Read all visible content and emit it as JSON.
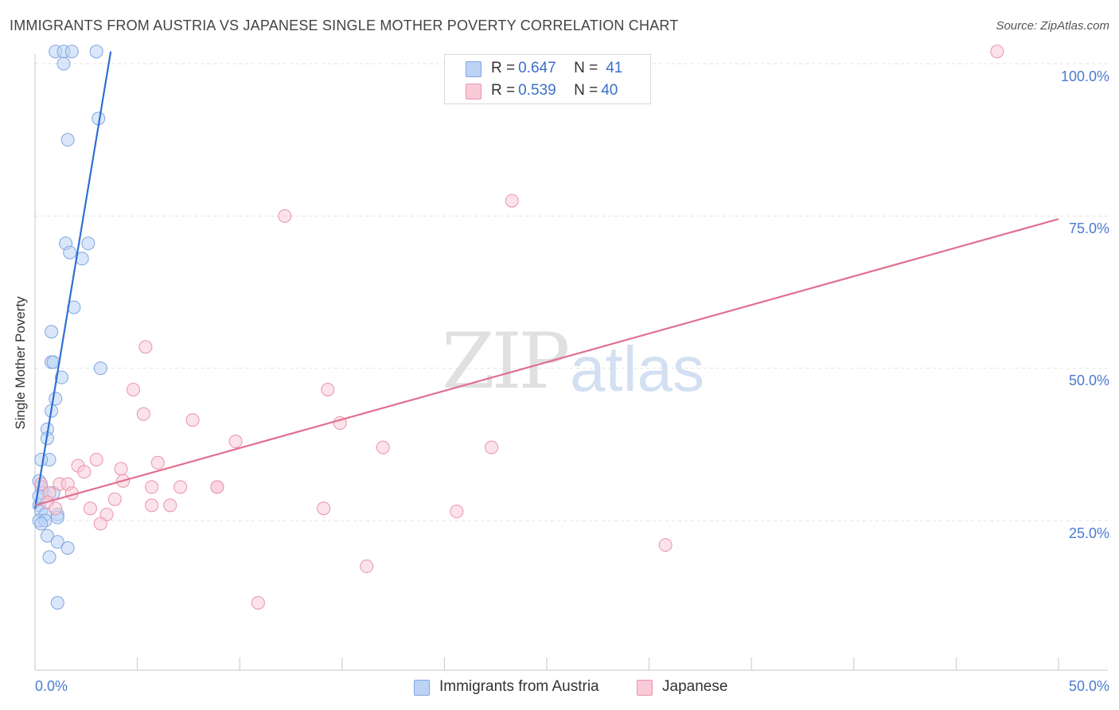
{
  "title": "IMMIGRANTS FROM AUSTRIA VS JAPANESE SINGLE MOTHER POVERTY CORRELATION CHART",
  "source": "Source: ZipAtlas.com",
  "watermark": {
    "zip": "ZIP",
    "atlas": "atlas"
  },
  "legend_top": {
    "rows": [
      {
        "r_label": "R = ",
        "r_value": "0.647",
        "n_label": "N = ",
        "n_value": "41"
      },
      {
        "r_label": "R = ",
        "r_value": "0.539",
        "n_label": "N = ",
        "n_value": "40"
      }
    ]
  },
  "bottom_legend": [
    "Immigrants from Austria",
    "Japanese"
  ],
  "colors": {
    "blue": "#2e6fd4",
    "blue_fill": "#bcd3f5",
    "pink": "#e0708f",
    "pink_fill": "#f9cad8"
  },
  "chart_data": {
    "type": "scatter",
    "title": "IMMIGRANTS FROM AUSTRIA VS JAPANESE SINGLE MOTHER POVERTY CORRELATION CHART",
    "xlabel": "",
    "ylabel": "Single Mother Poverty",
    "xlim": [
      0,
      50
    ],
    "ylim": [
      0,
      105
    ],
    "x_tick_labels": [
      "0.0%",
      "50.0%"
    ],
    "y_tick_labels": [
      "25.0%",
      "50.0%",
      "75.0%",
      "100.0%"
    ],
    "y_ticks": [
      25,
      50,
      75,
      100
    ],
    "grid": true,
    "legend_position": "top-center",
    "series": [
      {
        "name": "Immigrants from Austria",
        "color": "#2e6fd4",
        "trend": {
          "x": [
            0.0,
            3.7
          ],
          "y": [
            27.0,
            102.0
          ]
        },
        "points": [
          {
            "x": 1.0,
            "y": 102.0
          },
          {
            "x": 1.4,
            "y": 102.0
          },
          {
            "x": 1.8,
            "y": 102.0
          },
          {
            "x": 3.0,
            "y": 102.0
          },
          {
            "x": 1.4,
            "y": 100.0
          },
          {
            "x": 3.1,
            "y": 91.0
          },
          {
            "x": 1.6,
            "y": 87.5
          },
          {
            "x": 1.5,
            "y": 70.5
          },
          {
            "x": 1.7,
            "y": 69.0
          },
          {
            "x": 2.6,
            "y": 70.5
          },
          {
            "x": 2.3,
            "y": 68.0
          },
          {
            "x": 1.9,
            "y": 60.0
          },
          {
            "x": 0.8,
            "y": 56.0
          },
          {
            "x": 0.8,
            "y": 51.0
          },
          {
            "x": 0.9,
            "y": 51.0
          },
          {
            "x": 3.2,
            "y": 50.0
          },
          {
            "x": 1.3,
            "y": 48.5
          },
          {
            "x": 1.0,
            "y": 45.0
          },
          {
            "x": 0.8,
            "y": 43.0
          },
          {
            "x": 0.6,
            "y": 40.0
          },
          {
            "x": 0.6,
            "y": 38.5
          },
          {
            "x": 0.7,
            "y": 35.0
          },
          {
            "x": 0.3,
            "y": 35.0
          },
          {
            "x": 0.2,
            "y": 31.5
          },
          {
            "x": 0.3,
            "y": 30.5
          },
          {
            "x": 0.4,
            "y": 29.5
          },
          {
            "x": 0.9,
            "y": 29.5
          },
          {
            "x": 0.2,
            "y": 27.5
          },
          {
            "x": 0.3,
            "y": 26.5
          },
          {
            "x": 0.5,
            "y": 26.0
          },
          {
            "x": 1.1,
            "y": 26.0
          },
          {
            "x": 1.1,
            "y": 25.5
          },
          {
            "x": 0.2,
            "y": 25.0
          },
          {
            "x": 0.5,
            "y": 25.0
          },
          {
            "x": 0.3,
            "y": 24.5
          },
          {
            "x": 0.6,
            "y": 22.5
          },
          {
            "x": 1.1,
            "y": 21.5
          },
          {
            "x": 1.6,
            "y": 20.5
          },
          {
            "x": 0.7,
            "y": 19.0
          },
          {
            "x": 1.1,
            "y": 11.5
          },
          {
            "x": 0.2,
            "y": 29.0
          }
        ]
      },
      {
        "name": "Japanese",
        "color": "#e0708f",
        "trend": {
          "x": [
            0.0,
            50.0
          ],
          "y": [
            27.5,
            74.5
          ]
        },
        "points": [
          {
            "x": 47.0,
            "y": 102.0
          },
          {
            "x": 23.3,
            "y": 77.5
          },
          {
            "x": 12.2,
            "y": 75.0
          },
          {
            "x": 5.4,
            "y": 53.5
          },
          {
            "x": 14.3,
            "y": 46.5
          },
          {
            "x": 4.8,
            "y": 46.5
          },
          {
            "x": 5.3,
            "y": 42.5
          },
          {
            "x": 7.7,
            "y": 41.5
          },
          {
            "x": 14.9,
            "y": 41.0
          },
          {
            "x": 9.8,
            "y": 38.0
          },
          {
            "x": 17.0,
            "y": 37.0
          },
          {
            "x": 22.3,
            "y": 37.0
          },
          {
            "x": 3.0,
            "y": 35.0
          },
          {
            "x": 6.0,
            "y": 34.5
          },
          {
            "x": 2.1,
            "y": 34.0
          },
          {
            "x": 4.2,
            "y": 33.5
          },
          {
            "x": 2.4,
            "y": 33.0
          },
          {
            "x": 4.3,
            "y": 31.5
          },
          {
            "x": 1.2,
            "y": 31.0
          },
          {
            "x": 1.6,
            "y": 31.0
          },
          {
            "x": 0.3,
            "y": 31.0
          },
          {
            "x": 5.7,
            "y": 30.5
          },
          {
            "x": 7.1,
            "y": 30.5
          },
          {
            "x": 8.9,
            "y": 30.5
          },
          {
            "x": 8.9,
            "y": 30.5
          },
          {
            "x": 1.8,
            "y": 29.5
          },
          {
            "x": 0.7,
            "y": 29.5
          },
          {
            "x": 3.9,
            "y": 28.5
          },
          {
            "x": 0.6,
            "y": 28.0
          },
          {
            "x": 5.7,
            "y": 27.5
          },
          {
            "x": 6.6,
            "y": 27.5
          },
          {
            "x": 14.1,
            "y": 27.0
          },
          {
            "x": 2.7,
            "y": 27.0
          },
          {
            "x": 1.0,
            "y": 27.0
          },
          {
            "x": 20.6,
            "y": 26.5
          },
          {
            "x": 3.5,
            "y": 26.0
          },
          {
            "x": 3.2,
            "y": 24.5
          },
          {
            "x": 30.8,
            "y": 21.0
          },
          {
            "x": 16.2,
            "y": 17.5
          },
          {
            "x": 10.9,
            "y": 11.5
          }
        ]
      }
    ]
  }
}
